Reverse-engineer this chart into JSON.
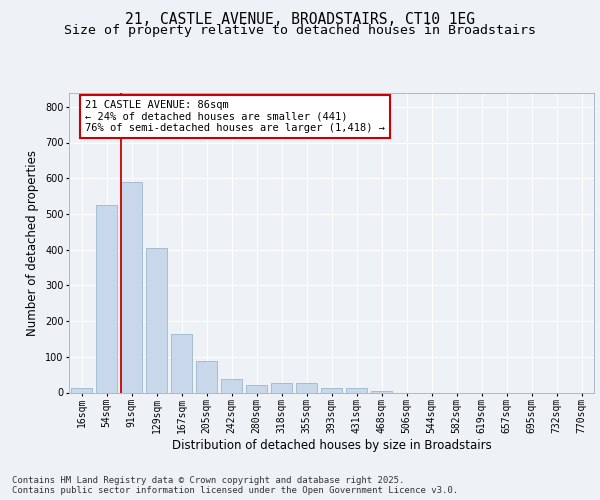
{
  "title_line1": "21, CASTLE AVENUE, BROADSTAIRS, CT10 1EG",
  "title_line2": "Size of property relative to detached houses in Broadstairs",
  "xlabel": "Distribution of detached houses by size in Broadstairs",
  "ylabel": "Number of detached properties",
  "bar_color": "#c8d8ea",
  "bar_edge_color": "#9ab8cc",
  "vline_color": "#cc0000",
  "vline_bar_index": 2,
  "categories": [
    "16sqm",
    "54sqm",
    "91sqm",
    "129sqm",
    "167sqm",
    "205sqm",
    "242sqm",
    "280sqm",
    "318sqm",
    "355sqm",
    "393sqm",
    "431sqm",
    "468sqm",
    "506sqm",
    "544sqm",
    "582sqm",
    "619sqm",
    "657sqm",
    "695sqm",
    "732sqm",
    "770sqm"
  ],
  "values": [
    14,
    525,
    590,
    405,
    165,
    88,
    37,
    22,
    28,
    28,
    13,
    13,
    4,
    0,
    0,
    0,
    0,
    0,
    0,
    0,
    0
  ],
  "ylim": [
    0,
    840
  ],
  "yticks": [
    0,
    100,
    200,
    300,
    400,
    500,
    600,
    700,
    800
  ],
  "annotation_text": "21 CASTLE AVENUE: 86sqm\n← 24% of detached houses are smaller (441)\n76% of semi-detached houses are larger (1,418) →",
  "footnote": "Contains HM Land Registry data © Crown copyright and database right 2025.\nContains public sector information licensed under the Open Government Licence v3.0.",
  "background_color": "#eef2f7",
  "plot_bg_color": "#eef2f7",
  "grid_color": "#ffffff",
  "title_fontsize": 10.5,
  "subtitle_fontsize": 9.5,
  "axis_label_fontsize": 8.5,
  "tick_fontsize": 7,
  "annotation_fontsize": 7.5,
  "footnote_fontsize": 6.5
}
